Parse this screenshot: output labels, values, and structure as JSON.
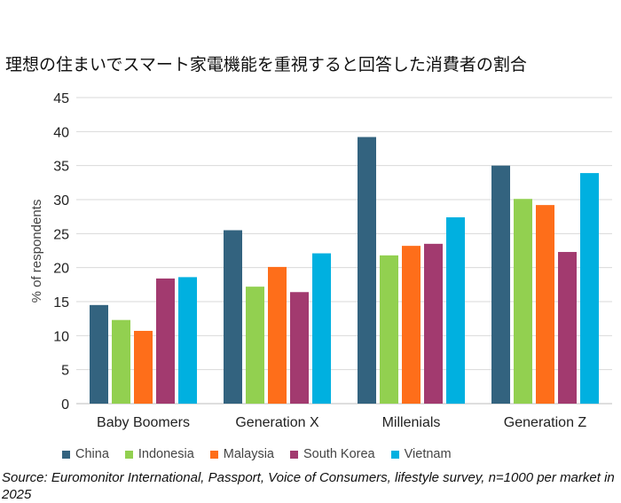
{
  "chart_data": {
    "type": "bar",
    "title": "理想の住まいでスマート家電機能を重視すると回答した消費者の割合",
    "xlabel": "",
    "ylabel": "% of respondents",
    "ylim": [
      0,
      45
    ],
    "yticks": [
      0,
      5,
      10,
      15,
      20,
      25,
      30,
      35,
      40,
      45
    ],
    "grid": true,
    "legend_position": "bottom",
    "categories": [
      "Baby Boomers",
      "Generation X",
      "Millenials",
      "Generation Z"
    ],
    "series": [
      {
        "name": "China",
        "color": "#33637f",
        "values": [
          14.5,
          25.5,
          39.2,
          35.0
        ]
      },
      {
        "name": "Indonesia",
        "color": "#92d050",
        "values": [
          12.3,
          17.2,
          21.8,
          30.1
        ]
      },
      {
        "name": "Malaysia",
        "color": "#fe6e1a",
        "values": [
          10.7,
          20.1,
          23.2,
          29.2
        ]
      },
      {
        "name": "South Korea",
        "color": "#a23a6f",
        "values": [
          18.4,
          16.4,
          23.5,
          22.3
        ]
      },
      {
        "name": "Vietnam",
        "color": "#00b0e0",
        "values": [
          18.6,
          22.1,
          27.4,
          33.9
        ]
      }
    ]
  },
  "source": "Source: Euromonitor International, Passport, Voice of Consumers, lifestyle survey,  n=1000 per market in 2025"
}
